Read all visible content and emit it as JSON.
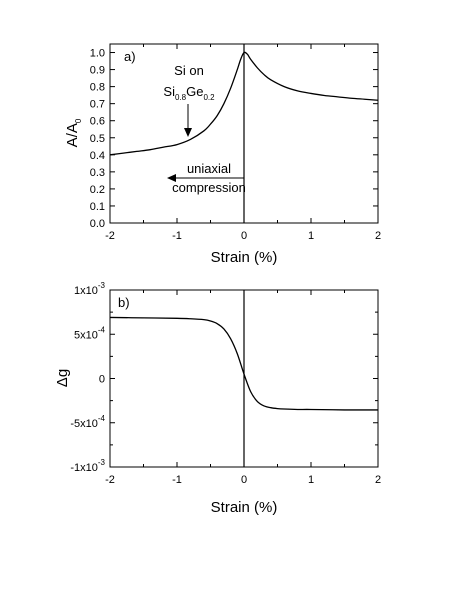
{
  "chart_data": [
    {
      "type": "line",
      "panel_label": "a)",
      "xlabel": "Strain (%)",
      "ylabel_main": "A/A",
      "ylabel_sub": "0",
      "xlim": [
        -2,
        2
      ],
      "ylim": [
        0,
        1.05
      ],
      "x_ticks": [
        -2,
        -1,
        0,
        1,
        2
      ],
      "x_tick_labels": [
        "-2",
        "-1",
        "0",
        "1",
        "2"
      ],
      "y_ticks": [
        0,
        0.1,
        0.2,
        0.3,
        0.4,
        0.5,
        0.6,
        0.7,
        0.8,
        0.9,
        1.0
      ],
      "y_tick_labels": [
        "0.0",
        "0.1",
        "0.2",
        "0.3",
        "0.4",
        "0.5",
        "0.6",
        "0.7",
        "0.8",
        "0.9",
        "1.0"
      ],
      "grid": false,
      "series": [
        {
          "x": [
            -2,
            -1.8,
            -1.6,
            -1.4,
            -1.2,
            -1.0,
            -0.8,
            -0.6,
            -0.5,
            -0.4,
            -0.3,
            -0.2,
            -0.1,
            -0.05,
            0,
            0.05,
            0.1,
            0.2,
            0.3,
            0.4,
            0.6,
            0.8,
            1.0,
            1.2,
            1.4,
            1.6,
            1.8,
            2.0
          ],
          "y": [
            0.4,
            0.41,
            0.42,
            0.43,
            0.445,
            0.46,
            0.49,
            0.54,
            0.58,
            0.63,
            0.7,
            0.79,
            0.9,
            0.96,
            1.0,
            0.99,
            0.96,
            0.91,
            0.87,
            0.84,
            0.8,
            0.775,
            0.76,
            0.748,
            0.74,
            0.732,
            0.726,
            0.72
          ]
        }
      ],
      "annotations": {
        "material_line1": "Si on",
        "material_si": "Si",
        "material_si_sub": "0.8",
        "material_ge": "Ge",
        "material_ge_sub": "0.2",
        "arrow_label_line1": "uniaxial",
        "arrow_label_line2": "compression"
      }
    },
    {
      "type": "line",
      "panel_label": "b)",
      "xlabel": "Strain (%)",
      "ylabel": "Δg",
      "xlim": [
        -2,
        2
      ],
      "ylim": [
        -0.001,
        0.001
      ],
      "x_ticks": [
        -2,
        -1,
        0,
        1,
        2
      ],
      "x_tick_labels": [
        "-2",
        "-1",
        "0",
        "1",
        "2"
      ],
      "y_ticks": [
        -0.001,
        -0.0005,
        0,
        0.0005,
        0.001
      ],
      "y_tick_labels": [
        {
          "base": "-1x10",
          "exp": "-3"
        },
        {
          "base": "-5x10",
          "exp": "-4"
        },
        {
          "base": "0",
          "exp": ""
        },
        {
          "base": "5x10",
          "exp": "-4"
        },
        {
          "base": "1x10",
          "exp": "-3"
        }
      ],
      "grid": false,
      "series": [
        {
          "x": [
            -2,
            -1.5,
            -1.0,
            -0.8,
            -0.6,
            -0.5,
            -0.4,
            -0.3,
            -0.2,
            -0.1,
            0,
            0.1,
            0.2,
            0.3,
            0.4,
            0.5,
            0.6,
            0.8,
            1.0,
            1.5,
            2.0
          ],
          "y": [
            0.00069,
            0.000685,
            0.00068,
            0.000675,
            0.000665,
            0.00065,
            0.00062,
            0.00056,
            0.00045,
            0.00028,
            5e-05,
            -0.00015,
            -0.00026,
            -0.00031,
            -0.00033,
            -0.00034,
            -0.000345,
            -0.00035,
            -0.00035,
            -0.000355,
            -0.000355
          ]
        }
      ]
    }
  ]
}
